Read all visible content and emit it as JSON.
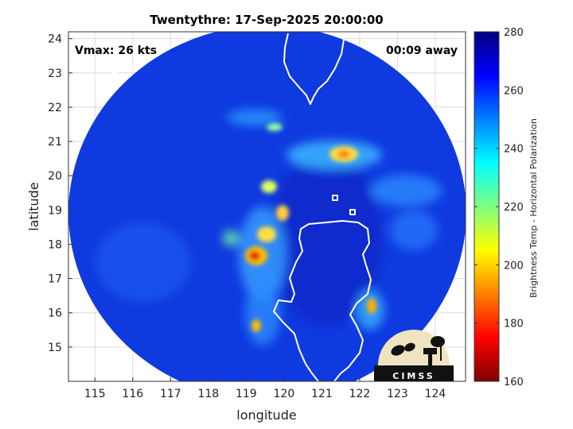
{
  "title": "Twentythre: 17-Sep-2025 20:00:00",
  "vmax_label": "Vmax: 26 kts",
  "time_away": "00:09 away",
  "axes": {
    "xlabel": "longitude",
    "ylabel": "latitude",
    "xlim": [
      114.3,
      124.8
    ],
    "ylim": [
      14.0,
      24.2
    ],
    "xticks": [
      "115",
      "116",
      "117",
      "118",
      "119",
      "120",
      "121",
      "122",
      "123",
      "124"
    ],
    "yticks": [
      "15",
      "16",
      "17",
      "18",
      "19",
      "20",
      "21",
      "22",
      "23",
      "24"
    ],
    "grid": true
  },
  "colorbar": {
    "label": "Brightness Temp - Horizontal Polarization",
    "range": [
      160,
      280
    ],
    "ticks": [
      "160",
      "180",
      "200",
      "220",
      "240",
      "260",
      "280"
    ],
    "colormap": "jet"
  },
  "logo": {
    "text": "CIMSS"
  },
  "colors": {
    "background_cold": "#0a2ad8",
    "coastline": "#ffffff"
  }
}
